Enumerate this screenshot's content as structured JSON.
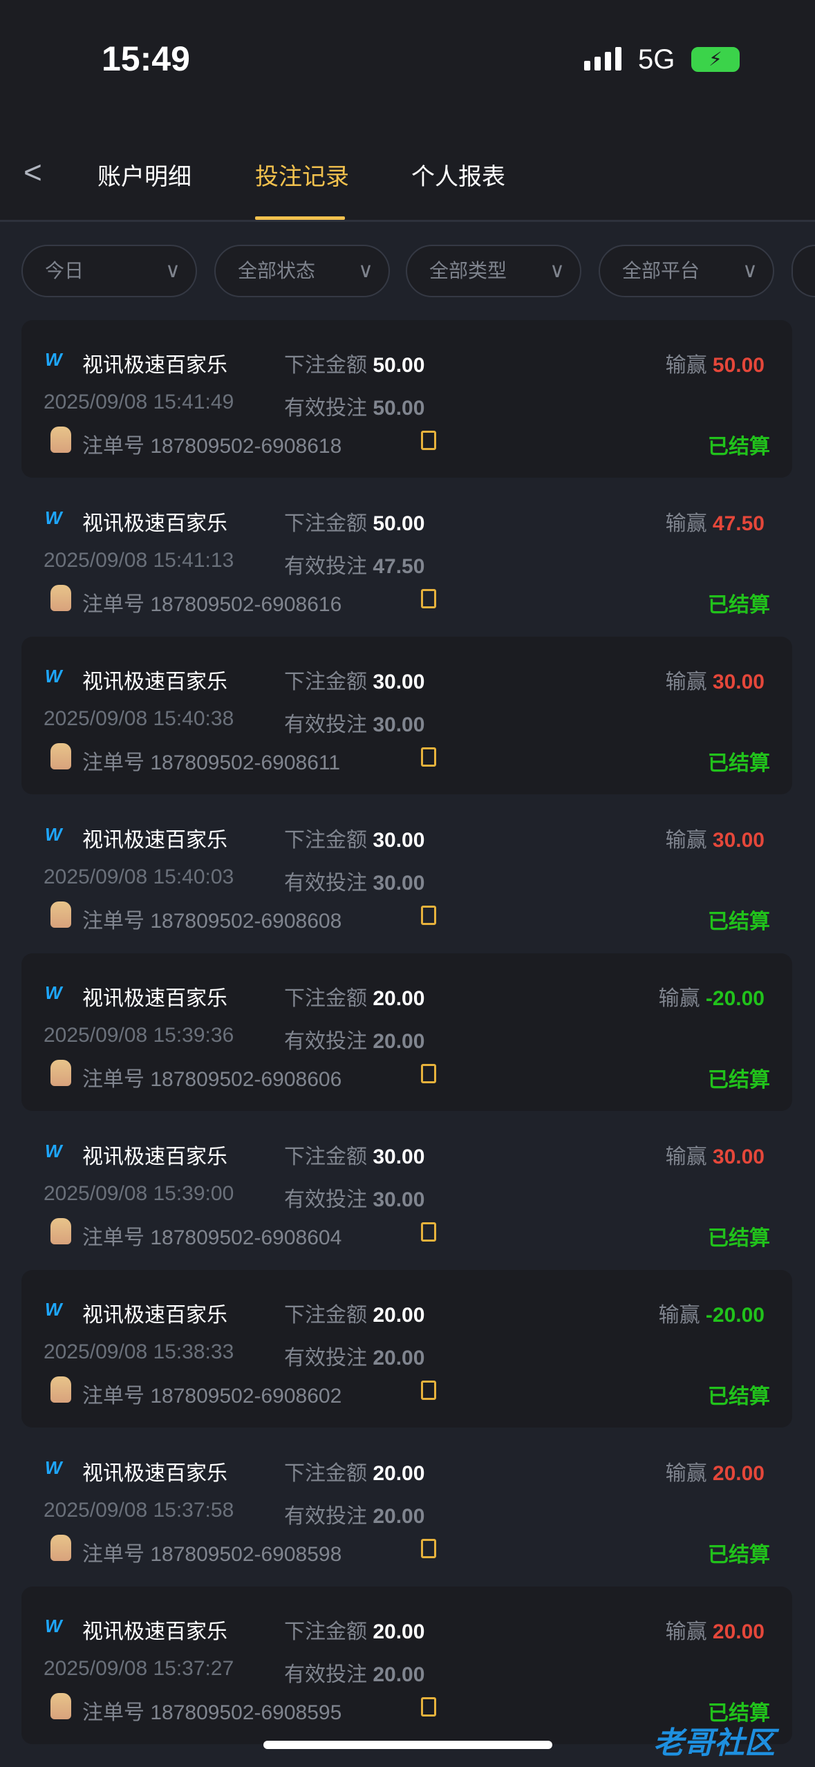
{
  "status_bar": {
    "time": "15:49",
    "network": "5G"
  },
  "tabs": [
    {
      "label": "账户明细"
    },
    {
      "label": "投注记录",
      "active": true
    },
    {
      "label": "个人报表"
    }
  ],
  "filters": [
    {
      "label": "今日"
    },
    {
      "label": "全部状态"
    },
    {
      "label": "全部类型"
    },
    {
      "label": "全部平台"
    }
  ],
  "labels": {
    "bet_amount": "下注金额",
    "valid_bet": "有效投注",
    "win_loss": "输赢",
    "order_no": "注单号"
  },
  "colors": {
    "accent": "#f2c14e",
    "win": "#e5473a",
    "loss": "#21c21b",
    "settled": "#21c21b"
  },
  "records": [
    {
      "game": "视讯极速百家乐",
      "bet": "50.00",
      "valid": "50.00",
      "result": "50.00",
      "time": "2025/09/08 15:41:49",
      "order": "187809502-6908618",
      "status": "已结算"
    },
    {
      "game": "视讯极速百家乐",
      "bet": "50.00",
      "valid": "47.50",
      "result": "47.50",
      "time": "2025/09/08 15:41:13",
      "order": "187809502-6908616",
      "status": "已结算"
    },
    {
      "game": "视讯极速百家乐",
      "bet": "30.00",
      "valid": "30.00",
      "result": "30.00",
      "time": "2025/09/08 15:40:38",
      "order": "187809502-6908611",
      "status": "已结算"
    },
    {
      "game": "视讯极速百家乐",
      "bet": "30.00",
      "valid": "30.00",
      "result": "30.00",
      "time": "2025/09/08 15:40:03",
      "order": "187809502-6908608",
      "status": "已结算"
    },
    {
      "game": "视讯极速百家乐",
      "bet": "20.00",
      "valid": "20.00",
      "result": "-20.00",
      "time": "2025/09/08 15:39:36",
      "order": "187809502-6908606",
      "status": "已结算"
    },
    {
      "game": "视讯极速百家乐",
      "bet": "30.00",
      "valid": "30.00",
      "result": "30.00",
      "time": "2025/09/08 15:39:00",
      "order": "187809502-6908604",
      "status": "已结算"
    },
    {
      "game": "视讯极速百家乐",
      "bet": "20.00",
      "valid": "20.00",
      "result": "-20.00",
      "time": "2025/09/08 15:38:33",
      "order": "187809502-6908602",
      "status": "已结算"
    },
    {
      "game": "视讯极速百家乐",
      "bet": "20.00",
      "valid": "20.00",
      "result": "20.00",
      "time": "2025/09/08 15:37:58",
      "order": "187809502-6908598",
      "status": "已结算"
    },
    {
      "game": "视讯极速百家乐",
      "bet": "20.00",
      "valid": "20.00",
      "result": "20.00",
      "time": "2025/09/08 15:37:27",
      "order": "187809502-6908595",
      "status": "已结算"
    }
  ],
  "watermark": "老哥社区"
}
